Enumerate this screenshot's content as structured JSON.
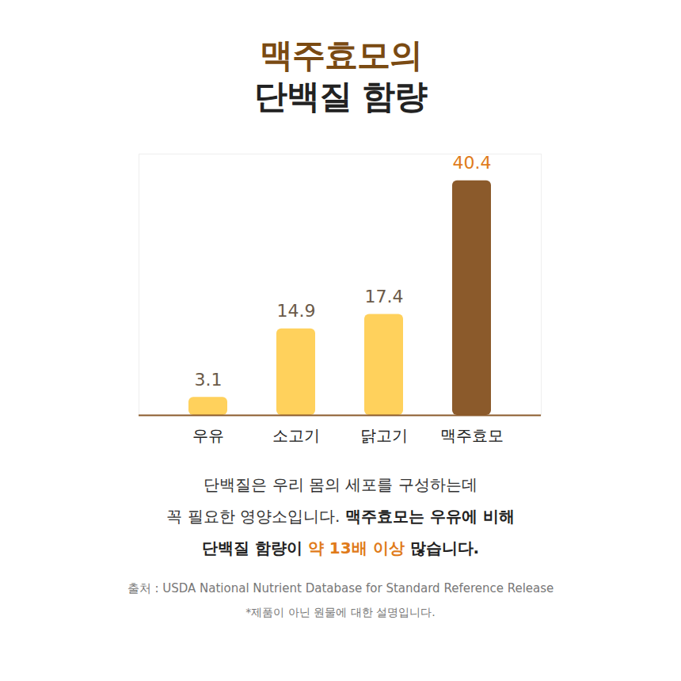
{
  "chart_data": {
    "type": "bar",
    "title": "맥주효모의",
    "subtitle": "단백질 함량",
    "categories": [
      "우유",
      "소고기",
      "닭고기",
      "맥주효모"
    ],
    "values": [
      3.1,
      14.9,
      17.4,
      40.4
    ],
    "colors": [
      "#ffd15c",
      "#ffd15c",
      "#ffd15c",
      "#8b5a2b"
    ],
    "ylim": [
      0,
      45
    ],
    "tick_labels": "x",
    "data_labels": true,
    "description": [
      [
        {
          "text": "단백질은 우리 몸의 세포를 구성하는데"
        }
      ],
      [
        {
          "text": "꼭 필요한 영양소입니다. "
        },
        {
          "text": "맥주효모는 우유에 비해",
          "bold": true
        }
      ],
      [
        {
          "text": "단백질 함량이 ",
          "bold": true
        },
        {
          "text": "약 13배 이상",
          "highlight": true
        },
        {
          "text": " 많습니다.",
          "bold": true
        }
      ]
    ],
    "source": "출처 : USDA National Nutrient Database for Standard Reference Release",
    "note": "*제품이 아닌 원물에 대한 설명입니다."
  }
}
